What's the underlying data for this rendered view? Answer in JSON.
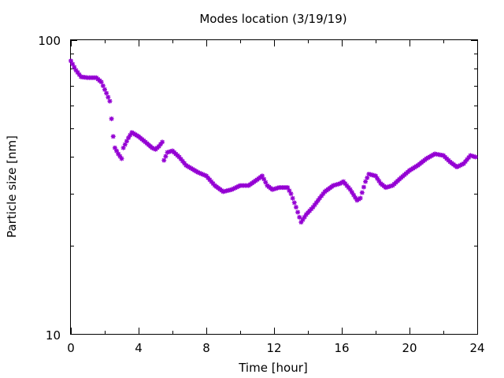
{
  "chart_data": {
    "type": "scatter",
    "title": "Modes location (3/19/19)",
    "xlabel": "Time [hour]",
    "ylabel": "Particle size [nm]",
    "xlim": [
      0,
      24
    ],
    "ylim": [
      10,
      100
    ],
    "yscale": "log",
    "grid": false,
    "legend": "none",
    "marker": "asterisk",
    "marker_color": "#9400d3",
    "x_ticks": [
      0,
      4,
      8,
      12,
      16,
      20,
      24
    ],
    "x_tick_labels": [
      "0",
      "4",
      "8",
      "12",
      "16",
      "20",
      "24"
    ],
    "y_tick_labels": [
      "10",
      "100"
    ],
    "series": [
      {
        "points": [
          [
            0.0,
            85
          ],
          [
            0.3,
            79
          ],
          [
            0.6,
            75
          ],
          [
            1.0,
            74.5
          ],
          [
            1.5,
            74.5
          ],
          [
            1.8,
            72
          ],
          [
            2.1,
            66
          ],
          [
            2.3,
            62
          ],
          [
            2.4,
            54
          ],
          [
            2.5,
            47
          ],
          [
            2.6,
            43
          ],
          [
            2.8,
            41
          ],
          [
            3.0,
            39.5
          ],
          [
            3.1,
            43
          ],
          [
            3.4,
            46.5
          ],
          [
            3.6,
            48.5
          ],
          [
            4.0,
            47
          ],
          [
            4.4,
            45
          ],
          [
            4.8,
            43
          ],
          [
            5.0,
            42.5
          ],
          [
            5.2,
            43.5
          ],
          [
            5.4,
            45
          ],
          [
            5.5,
            39
          ],
          [
            5.7,
            41.5
          ],
          [
            6.0,
            42
          ],
          [
            6.4,
            40
          ],
          [
            6.8,
            37.5
          ],
          [
            7.5,
            35.5
          ],
          [
            8.0,
            34.5
          ],
          [
            8.5,
            32
          ],
          [
            9.0,
            30.5
          ],
          [
            9.5,
            31
          ],
          [
            10.0,
            32
          ],
          [
            10.5,
            32
          ],
          [
            11.0,
            33.5
          ],
          [
            11.3,
            34.5
          ],
          [
            11.6,
            32
          ],
          [
            11.9,
            31
          ],
          [
            12.3,
            31.5
          ],
          [
            12.8,
            31.5
          ],
          [
            13.0,
            30
          ],
          [
            13.3,
            27
          ],
          [
            13.6,
            24
          ],
          [
            13.9,
            25.5
          ],
          [
            14.3,
            27
          ],
          [
            14.7,
            29
          ],
          [
            15.0,
            30.5
          ],
          [
            15.5,
            32
          ],
          [
            15.9,
            32.5
          ],
          [
            16.1,
            33
          ],
          [
            16.5,
            31
          ],
          [
            16.9,
            28.5
          ],
          [
            17.1,
            29
          ],
          [
            17.4,
            33
          ],
          [
            17.6,
            35
          ],
          [
            18.0,
            34.5
          ],
          [
            18.3,
            32.5
          ],
          [
            18.6,
            31.5
          ],
          [
            19.0,
            32
          ],
          [
            19.5,
            34
          ],
          [
            20.0,
            36
          ],
          [
            20.5,
            37.5
          ],
          [
            21.0,
            39.5
          ],
          [
            21.5,
            41
          ],
          [
            22.0,
            40.5
          ],
          [
            22.4,
            38.5
          ],
          [
            22.8,
            37
          ],
          [
            23.2,
            38
          ],
          [
            23.6,
            40.5
          ],
          [
            23.9,
            40
          ]
        ]
      }
    ]
  }
}
